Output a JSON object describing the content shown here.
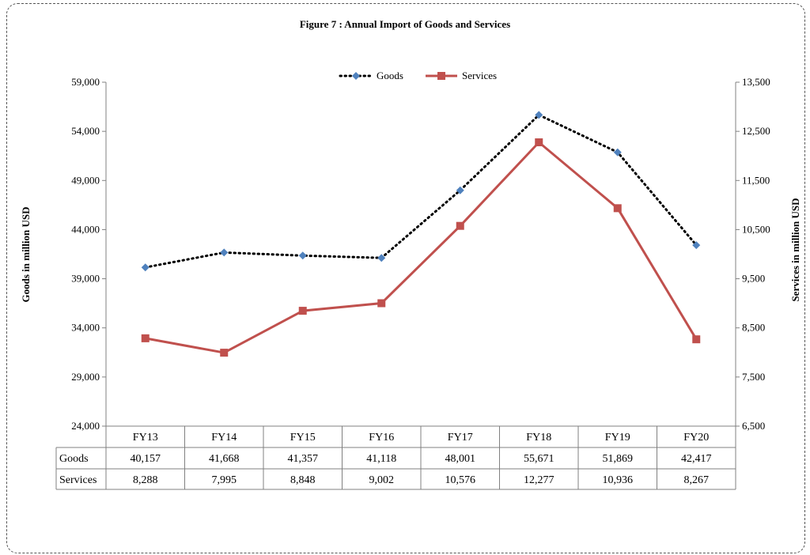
{
  "chart_data": {
    "type": "line",
    "title": "Figure  7 : Annual Import of Goods and Services",
    "categories": [
      "FY13",
      "FY14",
      "FY15",
      "FY16",
      "FY17",
      "FY18",
      "FY19",
      "FY20"
    ],
    "series": [
      {
        "name": "Goods",
        "axis": "left",
        "color": "#4F81BD",
        "line_color": "#000000",
        "line_style": "dotted",
        "marker": "diamond",
        "values": [
          40157,
          41668,
          41357,
          41118,
          48001,
          55671,
          51869,
          42417
        ],
        "labels": [
          "40,157",
          "41,668",
          "41,357",
          "41,118",
          "48,001",
          "55,671",
          "51,869",
          "42,417"
        ]
      },
      {
        "name": "Services",
        "axis": "right",
        "color": "#C0504D",
        "line_color": "#C0504D",
        "line_style": "solid",
        "marker": "square",
        "values": [
          8288,
          7995,
          8848,
          9002,
          10576,
          12277,
          10936,
          8267
        ],
        "labels": [
          "8,288",
          "7,995",
          "8,848",
          "9,002",
          "10,576",
          "12,277",
          "10,936",
          "8,267"
        ]
      }
    ],
    "ylabel_left": "Goods in million USD",
    "ylabel_right": "Services in million  USD",
    "ylim_left": [
      24000,
      59000
    ],
    "ylim_right": [
      6500,
      13500
    ],
    "yticks_left": [
      24000,
      29000,
      34000,
      39000,
      44000,
      49000,
      54000,
      59000
    ],
    "yticks_left_labels": [
      "24,000",
      "29,000",
      "34,000",
      "39,000",
      "44,000",
      "49,000",
      "54,000",
      "59,000"
    ],
    "yticks_right": [
      6500,
      7500,
      8500,
      9500,
      10500,
      11500,
      12500,
      13500
    ],
    "yticks_right_labels": [
      "6,500",
      "7,500",
      "8,500",
      "9,500",
      "10,500",
      "11,500",
      "12,500",
      "13,500"
    ],
    "legend_position": "top-center",
    "grid": false,
    "data_table": true
  }
}
